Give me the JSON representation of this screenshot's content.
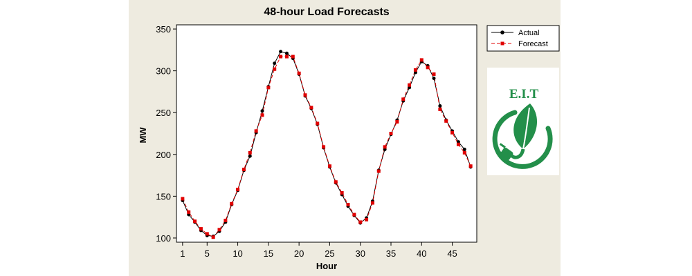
{
  "chart_data": {
    "type": "line",
    "title": "48-hour Load Forecasts",
    "xlabel": "Hour",
    "ylabel": "MW",
    "xlim": [
      0,
      49
    ],
    "ylim": [
      95,
      355
    ],
    "xticks": [
      1,
      5,
      10,
      15,
      20,
      25,
      30,
      35,
      40,
      45
    ],
    "yticks": [
      100,
      150,
      200,
      250,
      300,
      350
    ],
    "legend_position": "right",
    "x": [
      1,
      2,
      3,
      4,
      5,
      6,
      7,
      8,
      9,
      10,
      11,
      12,
      13,
      14,
      15,
      16,
      17,
      18,
      19,
      20,
      21,
      22,
      23,
      24,
      25,
      26,
      27,
      28,
      29,
      30,
      31,
      32,
      33,
      34,
      35,
      36,
      37,
      38,
      39,
      40,
      41,
      42,
      43,
      44,
      45,
      46,
      47,
      48
    ],
    "series": [
      {
        "name": "Actual",
        "color": "#000000",
        "marker": "circle",
        "line": "solid",
        "values": [
          145,
          128,
          119,
          109,
          103,
          102,
          108,
          119,
          140,
          157,
          181,
          198,
          226,
          252,
          281,
          309,
          323,
          321,
          315,
          296,
          270,
          255,
          236,
          208,
          185,
          166,
          152,
          138,
          127,
          118,
          124,
          144,
          181,
          206,
          224,
          241,
          264,
          280,
          298,
          311,
          306,
          291,
          258,
          241,
          228,
          215,
          206,
          185
        ]
      },
      {
        "name": "Forecast",
        "color": "#e00000",
        "marker": "square",
        "line": "dashed",
        "values": [
          147,
          131,
          120,
          111,
          105,
          101,
          110,
          121,
          141,
          158,
          182,
          202,
          228,
          247,
          280,
          302,
          317,
          317,
          317,
          297,
          271,
          256,
          237,
          209,
          186,
          167,
          154,
          140,
          128,
          119,
          122,
          142,
          180,
          209,
          225,
          239,
          266,
          283,
          301,
          313,
          304,
          296,
          254,
          240,
          226,
          212,
          202,
          186
        ]
      }
    ]
  },
  "logo": {
    "text": "E.I.T",
    "color": "#238f4a"
  }
}
